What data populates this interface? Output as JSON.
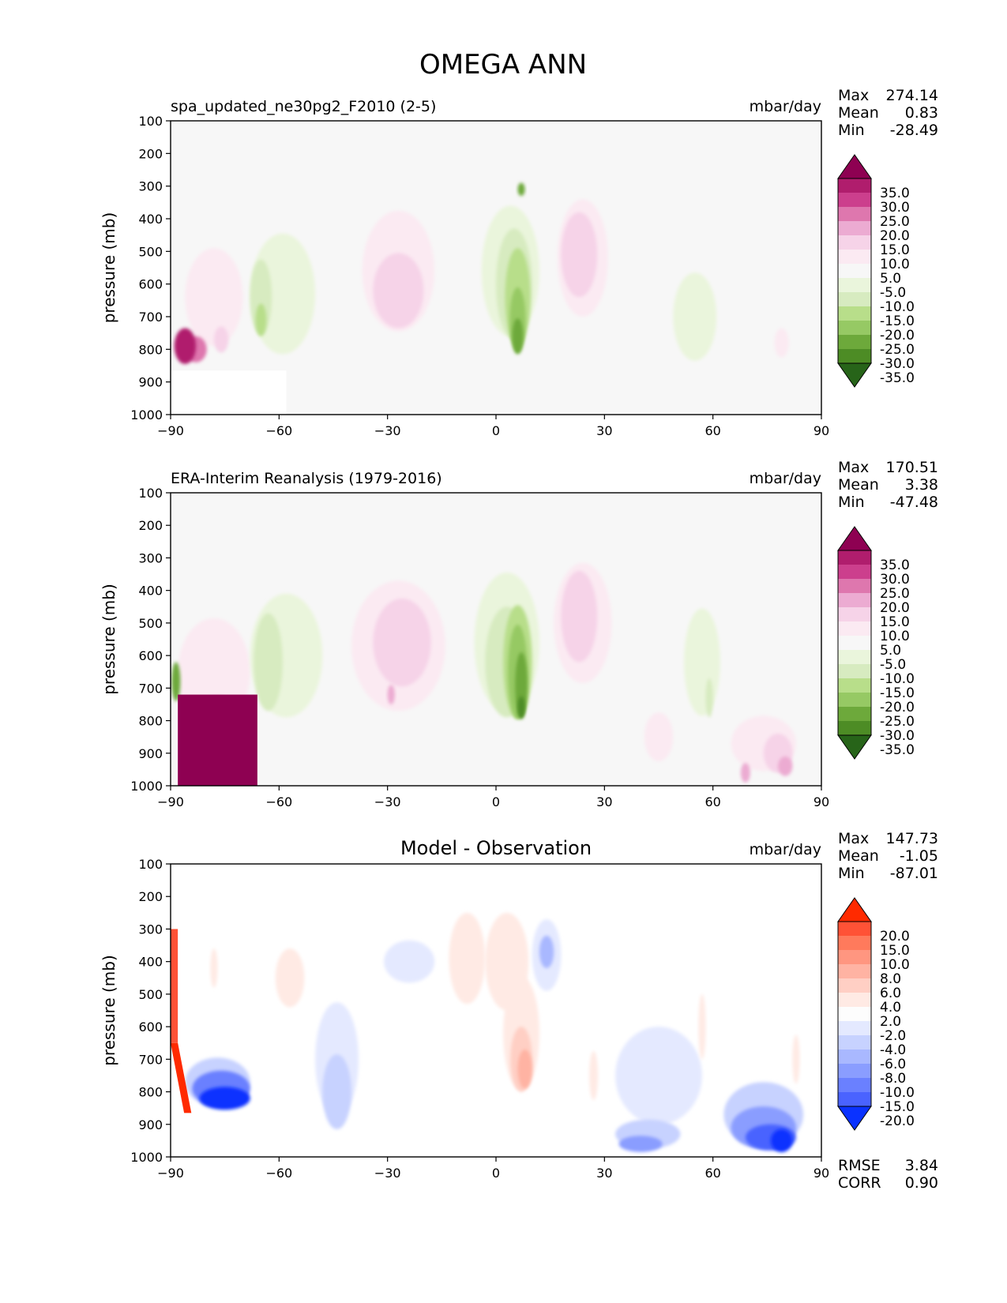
{
  "figure_title": "OMEGA ANN",
  "chart_data": [
    {
      "type": "heatmap",
      "title": "spa_updated_ne30pg2_F2010 (2-5)",
      "units": "mbar/day",
      "xlabel": "",
      "ylabel": "pressure (mb)",
      "xlim": [
        -90,
        90
      ],
      "ylim": [
        1000,
        100
      ],
      "x_ticks": [
        "−90",
        "−60",
        "−30",
        "0",
        "30",
        "60",
        "90"
      ],
      "y_ticks": [
        "100",
        "200",
        "300",
        "400",
        "500",
        "600",
        "700",
        "800",
        "900",
        "1000"
      ],
      "stats": {
        "labels": [
          "Max",
          "Mean",
          "Min"
        ],
        "values": [
          "274.14",
          "0.83",
          "-28.49"
        ]
      },
      "colorbar": {
        "labels": [
          "35.0",
          "30.0",
          "25.0",
          "20.0",
          "15.0",
          "10.0",
          "5.0",
          "-5.0",
          "-10.0",
          "-15.0",
          "-20.0",
          "-25.0",
          "-30.0",
          "-35.0"
        ],
        "colors": [
          "#8e0152",
          "#b01d6d",
          "#cc3f8d",
          "#de77ae",
          "#ecabd2",
          "#f6d3e8",
          "#fbeaf2",
          "#f7f7f7",
          "#eaf5dc",
          "#d7ebc0",
          "#b8de8a",
          "#96c964",
          "#6da93b",
          "#4d8c25",
          "#276419"
        ]
      },
      "features": [
        {
          "kind": "blob",
          "lat": -78,
          "p": 640,
          "dlat": 8,
          "dp": 300,
          "level": 1
        },
        {
          "kind": "blob",
          "lat": -86,
          "p": 790,
          "dlat": 3,
          "dp": 110,
          "level": 6
        },
        {
          "kind": "blob",
          "lat": -83,
          "p": 800,
          "dlat": 3,
          "dp": 80,
          "level": 4
        },
        {
          "kind": "blob",
          "lat": -76,
          "p": 770,
          "dlat": 2,
          "dp": 80,
          "level": 2
        },
        {
          "kind": "blob",
          "lat": -59,
          "p": 630,
          "dlat": 9,
          "dp": 370,
          "level": -1
        },
        {
          "kind": "blob",
          "lat": -65,
          "p": 640,
          "dlat": 3,
          "dp": 230,
          "level": -2
        },
        {
          "kind": "blob",
          "lat": -65,
          "p": 710,
          "dlat": 1.5,
          "dp": 100,
          "level": -3
        },
        {
          "kind": "blob",
          "lat": -27,
          "p": 560,
          "dlat": 10,
          "dp": 370,
          "level": 1
        },
        {
          "kind": "blob",
          "lat": -27,
          "p": 620,
          "dlat": 7,
          "dp": 230,
          "level": 2
        },
        {
          "kind": "blob",
          "lat": 4,
          "p": 560,
          "dlat": 8,
          "dp": 400,
          "level": -1
        },
        {
          "kind": "blob",
          "lat": 5,
          "p": 600,
          "dlat": 5,
          "dp": 340,
          "level": -2
        },
        {
          "kind": "blob",
          "lat": 6,
          "p": 640,
          "dlat": 3.5,
          "dp": 300,
          "level": -3
        },
        {
          "kind": "blob",
          "lat": 6,
          "p": 710,
          "dlat": 2.2,
          "dp": 200,
          "level": -4
        },
        {
          "kind": "blob",
          "lat": 6,
          "p": 760,
          "dlat": 1.5,
          "dp": 110,
          "level": -5
        },
        {
          "kind": "blob",
          "lat": 7,
          "p": 310,
          "dlat": 1,
          "dp": 40,
          "level": -5
        },
        {
          "kind": "blob",
          "lat": 24,
          "p": 520,
          "dlat": 7,
          "dp": 360,
          "level": 1
        },
        {
          "kind": "blob",
          "lat": 23,
          "p": 510,
          "dlat": 5,
          "dp": 260,
          "level": 2
        },
        {
          "kind": "blob",
          "lat": 55,
          "p": 700,
          "dlat": 6,
          "dp": 270,
          "level": -1
        },
        {
          "kind": "blob",
          "lat": 79,
          "p": 780,
          "dlat": 2,
          "dp": 90,
          "level": 1
        },
        {
          "kind": "mask",
          "lat0": -90,
          "lat1": -58,
          "p0": 865,
          "p1": 1000
        }
      ]
    },
    {
      "type": "heatmap",
      "title": "ERA-Interim Reanalysis (1979-2016)",
      "units": "mbar/day",
      "xlabel": "",
      "ylabel": "pressure (mb)",
      "xlim": [
        -90,
        90
      ],
      "ylim": [
        1000,
        100
      ],
      "x_ticks": [
        "−90",
        "−60",
        "−30",
        "0",
        "30",
        "60",
        "90"
      ],
      "y_ticks": [
        "100",
        "200",
        "300",
        "400",
        "500",
        "600",
        "700",
        "800",
        "900",
        "1000"
      ],
      "stats": {
        "labels": [
          "Max",
          "Mean",
          "Min"
        ],
        "values": [
          "170.51",
          "3.38",
          "-47.48"
        ]
      },
      "colorbar": {
        "labels": [
          "35.0",
          "30.0",
          "25.0",
          "20.0",
          "15.0",
          "10.0",
          "5.0",
          "-5.0",
          "-10.0",
          "-15.0",
          "-20.0",
          "-25.0",
          "-30.0",
          "-35.0"
        ],
        "colors": [
          "#8e0152",
          "#b01d6d",
          "#cc3f8d",
          "#de77ae",
          "#ecabd2",
          "#f6d3e8",
          "#fbeaf2",
          "#f7f7f7",
          "#eaf5dc",
          "#d7ebc0",
          "#b8de8a",
          "#96c964",
          "#6da93b",
          "#4d8c25",
          "#276419"
        ]
      },
      "features": [
        {
          "kind": "blob",
          "lat": -78,
          "p": 650,
          "dlat": 10,
          "dp": 330,
          "level": 1
        },
        {
          "kind": "blob",
          "lat": -77,
          "p": 830,
          "dlat": 9,
          "dp": 210,
          "level": 3
        },
        {
          "kind": "rect",
          "lat0": -88,
          "lat1": -66,
          "p0": 720,
          "p1": 1000,
          "level": 7
        },
        {
          "kind": "blob",
          "lat": -88.5,
          "p": 680,
          "dlat": 1.2,
          "dp": 120,
          "level": -5
        },
        {
          "kind": "blob",
          "lat": -58,
          "p": 600,
          "dlat": 10,
          "dp": 380,
          "level": -1
        },
        {
          "kind": "blob",
          "lat": -63,
          "p": 620,
          "dlat": 4,
          "dp": 300,
          "level": -2
        },
        {
          "kind": "blob",
          "lat": -27,
          "p": 570,
          "dlat": 13,
          "dp": 400,
          "level": 1
        },
        {
          "kind": "blob",
          "lat": -26,
          "p": 560,
          "dlat": 8,
          "dp": 270,
          "level": 2
        },
        {
          "kind": "blob",
          "lat": -29,
          "p": 720,
          "dlat": 1,
          "dp": 60,
          "level": 3
        },
        {
          "kind": "blob",
          "lat": 3,
          "p": 560,
          "dlat": 9,
          "dp": 430,
          "level": -1
        },
        {
          "kind": "blob",
          "lat": 3,
          "p": 620,
          "dlat": 6,
          "dp": 340,
          "level": -2
        },
        {
          "kind": "blob",
          "lat": 6,
          "p": 620,
          "dlat": 4,
          "dp": 350,
          "level": -3
        },
        {
          "kind": "blob",
          "lat": 6,
          "p": 650,
          "dlat": 2.7,
          "dp": 290,
          "level": -4
        },
        {
          "kind": "blob",
          "lat": 7,
          "p": 690,
          "dlat": 1.7,
          "dp": 200,
          "level": -5
        },
        {
          "kind": "blob",
          "lat": 7,
          "p": 760,
          "dlat": 1,
          "dp": 70,
          "level": -6
        },
        {
          "kind": "blob",
          "lat": 24,
          "p": 500,
          "dlat": 8,
          "dp": 370,
          "level": 1
        },
        {
          "kind": "blob",
          "lat": 23,
          "p": 480,
          "dlat": 5,
          "dp": 280,
          "level": 2
        },
        {
          "kind": "blob",
          "lat": 57,
          "p": 620,
          "dlat": 5,
          "dp": 330,
          "level": -1
        },
        {
          "kind": "blob",
          "lat": 59,
          "p": 730,
          "dlat": 1,
          "dp": 120,
          "level": -2
        },
        {
          "kind": "blob",
          "lat": 45,
          "p": 850,
          "dlat": 4,
          "dp": 150,
          "level": 1
        },
        {
          "kind": "blob",
          "lat": 74,
          "p": 870,
          "dlat": 9,
          "dp": 170,
          "level": 1
        },
        {
          "kind": "blob",
          "lat": 78,
          "p": 900,
          "dlat": 4,
          "dp": 120,
          "level": 2
        },
        {
          "kind": "blob",
          "lat": 80,
          "p": 940,
          "dlat": 2,
          "dp": 60,
          "level": 3
        },
        {
          "kind": "blob",
          "lat": 69,
          "p": 960,
          "dlat": 1.3,
          "dp": 60,
          "level": 3
        }
      ]
    },
    {
      "type": "heatmap",
      "title": "Model - Observation",
      "units": "mbar/day",
      "xlabel": "",
      "ylabel": "pressure (mb)",
      "xlim": [
        -90,
        90
      ],
      "ylim": [
        1000,
        100
      ],
      "x_ticks": [
        "−90",
        "−60",
        "−30",
        "0",
        "30",
        "60",
        "90"
      ],
      "y_ticks": [
        "100",
        "200",
        "300",
        "400",
        "500",
        "600",
        "700",
        "800",
        "900",
        "1000"
      ],
      "stats": {
        "labels": [
          "Max",
          "Mean",
          "Min"
        ],
        "values": [
          "147.73",
          "-1.05",
          "-87.01"
        ]
      },
      "metrics": {
        "labels": [
          "RMSE",
          "CORR"
        ],
        "values": [
          "3.84",
          "0.90"
        ]
      },
      "colorbar": {
        "labels": [
          "20.0",
          "15.0",
          "10.0",
          "8.0",
          "6.0",
          "4.0",
          "2.0",
          "-2.0",
          "-4.0",
          "-6.0",
          "-8.0",
          "-10.0",
          "-15.0",
          "-20.0"
        ],
        "colors": [
          "#ff2a00",
          "#ff5236",
          "#ff7a5c",
          "#ff9680",
          "#ffb3a3",
          "#ffcfc4",
          "#ffeae4",
          "#fdfdfd",
          "#e4e9ff",
          "#c7d2ff",
          "#a9b8ff",
          "#8a9dff",
          "#6a80ff",
          "#4a63ff",
          "#0a32ff"
        ]
      },
      "features": [
        {
          "kind": "rect",
          "lat0": -90,
          "lat1": -88,
          "p0": 300,
          "p1": 650,
          "level": 6
        },
        {
          "kind": "poly",
          "pts": [
            [
              -90,
              650
            ],
            [
              -88,
              650
            ],
            [
              -84,
              880
            ],
            [
              -86,
              880
            ]
          ],
          "level": 7
        },
        {
          "kind": "blob",
          "lat": -77,
          "p": 770,
          "dlat": 9,
          "dp": 150,
          "level": -2
        },
        {
          "kind": "blob",
          "lat": -76,
          "p": 790,
          "dlat": 8,
          "dp": 110,
          "level": -5
        },
        {
          "kind": "blob",
          "lat": -75,
          "p": 820,
          "dlat": 7,
          "dp": 70,
          "level": -7
        },
        {
          "kind": "blob",
          "lat": -78,
          "p": 420,
          "dlat": 1,
          "dp": 120,
          "level": 1
        },
        {
          "kind": "blob",
          "lat": -57,
          "p": 450,
          "dlat": 4,
          "dp": 180,
          "level": 1
        },
        {
          "kind": "blob",
          "lat": -44,
          "p": 700,
          "dlat": 6,
          "dp": 350,
          "level": -1
        },
        {
          "kind": "blob",
          "lat": -44,
          "p": 800,
          "dlat": 4,
          "dp": 230,
          "level": -2
        },
        {
          "kind": "blob",
          "lat": -24,
          "p": 400,
          "dlat": 7,
          "dp": 130,
          "level": -1
        },
        {
          "kind": "blob",
          "lat": -8,
          "p": 390,
          "dlat": 5,
          "dp": 280,
          "level": 1
        },
        {
          "kind": "blob",
          "lat": 3,
          "p": 400,
          "dlat": 6,
          "dp": 300,
          "level": 1
        },
        {
          "kind": "blob",
          "lat": 7,
          "p": 620,
          "dlat": 5,
          "dp": 350,
          "level": 1
        },
        {
          "kind": "blob",
          "lat": 7,
          "p": 700,
          "dlat": 3,
          "dp": 200,
          "level": 2
        },
        {
          "kind": "blob",
          "lat": 8,
          "p": 730,
          "dlat": 2,
          "dp": 120,
          "level": 3
        },
        {
          "kind": "blob",
          "lat": 14,
          "p": 380,
          "dlat": 4,
          "dp": 220,
          "level": -1
        },
        {
          "kind": "blob",
          "lat": 14,
          "p": 370,
          "dlat": 2,
          "dp": 100,
          "level": -3
        },
        {
          "kind": "blob",
          "lat": 45,
          "p": 750,
          "dlat": 12,
          "dp": 300,
          "level": -1
        },
        {
          "kind": "blob",
          "lat": 42,
          "p": 930,
          "dlat": 9,
          "dp": 90,
          "level": -2
        },
        {
          "kind": "blob",
          "lat": 40,
          "p": 960,
          "dlat": 6,
          "dp": 50,
          "level": -4
        },
        {
          "kind": "blob",
          "lat": 74,
          "p": 870,
          "dlat": 11,
          "dp": 200,
          "level": -2
        },
        {
          "kind": "blob",
          "lat": 74,
          "p": 910,
          "dlat": 9,
          "dp": 130,
          "level": -4
        },
        {
          "kind": "blob",
          "lat": 76,
          "p": 940,
          "dlat": 7,
          "dp": 80,
          "level": -6
        },
        {
          "kind": "blob",
          "lat": 79,
          "p": 950,
          "dlat": 3,
          "dp": 70,
          "level": -7
        },
        {
          "kind": "blob",
          "lat": 57,
          "p": 600,
          "dlat": 1,
          "dp": 200,
          "level": 1
        },
        {
          "kind": "blob",
          "lat": 83,
          "p": 700,
          "dlat": 1,
          "dp": 150,
          "level": 1
        },
        {
          "kind": "blob",
          "lat": 27,
          "p": 750,
          "dlat": 1.2,
          "dp": 150,
          "level": 1
        },
        {
          "kind": "mask",
          "lat0": -90,
          "lat1": -65,
          "p0": 865,
          "p1": 1000
        }
      ]
    }
  ]
}
